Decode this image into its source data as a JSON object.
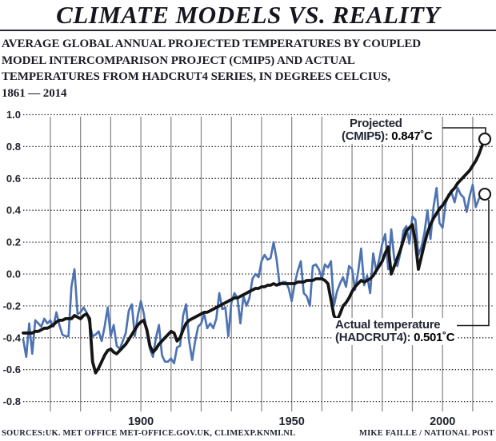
{
  "title": "CLIMATE MODELS VS. REALITY",
  "subtitle": {
    "lines": [
      "AVERAGE GLOBAL ANNUAL PROJECTED TEMPERATURES BY COUPLED",
      "MODEL INTERCOMPARISON PROJECT (CMIP5) AND ACTUAL",
      "TEMPERATURES FROM HADCRUT4 SERIES, IN DEGREES CELCIUS,",
      "1861 — 2014"
    ]
  },
  "annotations": {
    "projected": {
      "label": "Projected",
      "detail_prefix": "(CMIP5): ",
      "value": "0.847˚C"
    },
    "actual": {
      "label": "Actual temperature",
      "detail_prefix": "(HADCRUT4): ",
      "value": "0.501˚C"
    }
  },
  "footer": {
    "sources": "SOURCES:UK. MET OFFICE MET-OFFICE.GOV.UK, CLIMEXP.KNMI.NL",
    "credit": "MIKE FAILLE / NATIONAL POST"
  },
  "chart_data": {
    "type": "line",
    "title": "",
    "xlabel": "",
    "ylabel": "",
    "xlim": [
      1861,
      2014
    ],
    "ylim": [
      -0.88,
      1.02
    ],
    "xticks": [
      1900,
      1950,
      2000
    ],
    "yticks": [
      1.0,
      0.8,
      0.6,
      0.4,
      0.2,
      0.0,
      -0.2,
      -0.4,
      -0.6,
      -0.8
    ],
    "grid": {
      "vertical_from": 1870,
      "vertical_to": 2010,
      "vertical_every": 10,
      "horizontal": "dotted"
    },
    "legend_position": "annotations-on-plot",
    "colors": {
      "projected": "#141414",
      "actual": "#4e73b2",
      "gridline": "#8d8d8d",
      "dotted": "#2e2e2e",
      "marker_stroke": "#1a1a1a"
    },
    "x_start_year": 1861,
    "series": [
      {
        "name": "Projected (CMIP5)",
        "color": "#141414",
        "width": 3.8,
        "end_value": 0.847,
        "values": [
          -0.37,
          -0.37,
          -0.37,
          -0.37,
          -0.36,
          -0.36,
          -0.35,
          -0.34,
          -0.34,
          -0.33,
          -0.32,
          -0.3,
          -0.29,
          -0.29,
          -0.28,
          -0.28,
          -0.28,
          -0.26,
          -0.27,
          -0.28,
          -0.26,
          -0.25,
          -0.28,
          -0.55,
          -0.62,
          -0.59,
          -0.55,
          -0.51,
          -0.48,
          -0.47,
          -0.49,
          -0.5,
          -0.48,
          -0.46,
          -0.44,
          -0.41,
          -0.38,
          -0.35,
          -0.32,
          -0.3,
          -0.29,
          -0.35,
          -0.45,
          -0.49,
          -0.47,
          -0.44,
          -0.42,
          -0.4,
          -0.38,
          -0.36,
          -0.37,
          -0.42,
          -0.4,
          -0.35,
          -0.31,
          -0.29,
          -0.28,
          -0.27,
          -0.26,
          -0.25,
          -0.24,
          -0.24,
          -0.23,
          -0.22,
          -0.21,
          -0.2,
          -0.19,
          -0.18,
          -0.17,
          -0.16,
          -0.15,
          -0.15,
          -0.14,
          -0.13,
          -0.12,
          -0.11,
          -0.1,
          -0.09,
          -0.09,
          -0.08,
          -0.08,
          -0.07,
          -0.07,
          -0.06,
          -0.07,
          -0.06,
          -0.06,
          -0.06,
          -0.06,
          -0.06,
          -0.06,
          -0.05,
          -0.05,
          -0.05,
          -0.04,
          -0.04,
          -0.04,
          -0.03,
          -0.03,
          -0.03,
          -0.04,
          -0.06,
          -0.16,
          -0.26,
          -0.29,
          -0.25,
          -0.2,
          -0.18,
          -0.15,
          -0.11,
          -0.08,
          -0.06,
          -0.04,
          -0.05,
          -0.04,
          -0.03,
          -0.01,
          0.02,
          0.05,
          0.08,
          0.13,
          0.17,
          0.0,
          0.05,
          0.1,
          0.15,
          0.21,
          0.27,
          0.29,
          0.31,
          0.2,
          0.03,
          0.11,
          0.19,
          0.26,
          0.31,
          0.35,
          0.38,
          0.41,
          0.43,
          0.46,
          0.49,
          0.52,
          0.54,
          0.57,
          0.59,
          0.61,
          0.63,
          0.65,
          0.68,
          0.71,
          0.75,
          0.8,
          0.847
        ]
      },
      {
        "name": "Actual (HADCRUT4)",
        "color": "#4e73b2",
        "width": 2.7,
        "end_value": 0.501,
        "values": [
          -0.41,
          -0.52,
          -0.31,
          -0.5,
          -0.29,
          -0.31,
          -0.33,
          -0.28,
          -0.31,
          -0.29,
          -0.33,
          -0.24,
          -0.32,
          -0.38,
          -0.39,
          -0.39,
          -0.08,
          0.03,
          -0.25,
          -0.24,
          -0.21,
          -0.24,
          -0.31,
          -0.39,
          -0.38,
          -0.36,
          -0.42,
          -0.33,
          -0.21,
          -0.39,
          -0.32,
          -0.45,
          -0.47,
          -0.42,
          -0.37,
          -0.23,
          -0.19,
          -0.39,
          -0.26,
          -0.17,
          -0.25,
          -0.37,
          -0.47,
          -0.52,
          -0.4,
          -0.32,
          -0.51,
          -0.55,
          -0.55,
          -0.53,
          -0.56,
          -0.46,
          -0.45,
          -0.26,
          -0.19,
          -0.42,
          -0.54,
          -0.42,
          -0.33,
          -0.31,
          -0.25,
          -0.34,
          -0.31,
          -0.34,
          -0.28,
          -0.12,
          -0.22,
          -0.21,
          -0.39,
          -0.18,
          -0.12,
          -0.15,
          -0.31,
          -0.14,
          -0.2,
          -0.15,
          -0.03,
          0.0,
          -0.02,
          0.08,
          0.12,
          0.09,
          0.1,
          0.2,
          0.09,
          -0.07,
          -0.05,
          -0.05,
          -0.09,
          -0.17,
          -0.06,
          0.02,
          0.08,
          -0.12,
          -0.14,
          -0.2,
          0.05,
          0.06,
          0.03,
          -0.03,
          0.06,
          0.04,
          0.08,
          -0.2,
          -0.11,
          -0.06,
          -0.02,
          -0.08,
          0.05,
          0.03,
          -0.1,
          0.01,
          0.16,
          -0.07,
          -0.01,
          -0.12,
          0.13,
          0.02,
          0.09,
          0.19,
          0.25,
          0.03,
          0.28,
          0.09,
          0.05,
          0.13,
          0.27,
          0.3,
          0.19,
          0.36,
          0.34,
          0.12,
          0.17,
          0.26,
          0.4,
          0.22,
          0.42,
          0.54,
          0.32,
          0.29,
          0.44,
          0.5,
          0.51,
          0.45,
          0.54,
          0.5,
          0.48,
          0.39,
          0.49,
          0.56,
          0.42,
          0.47,
          0.5,
          0.501
        ]
      }
    ]
  }
}
